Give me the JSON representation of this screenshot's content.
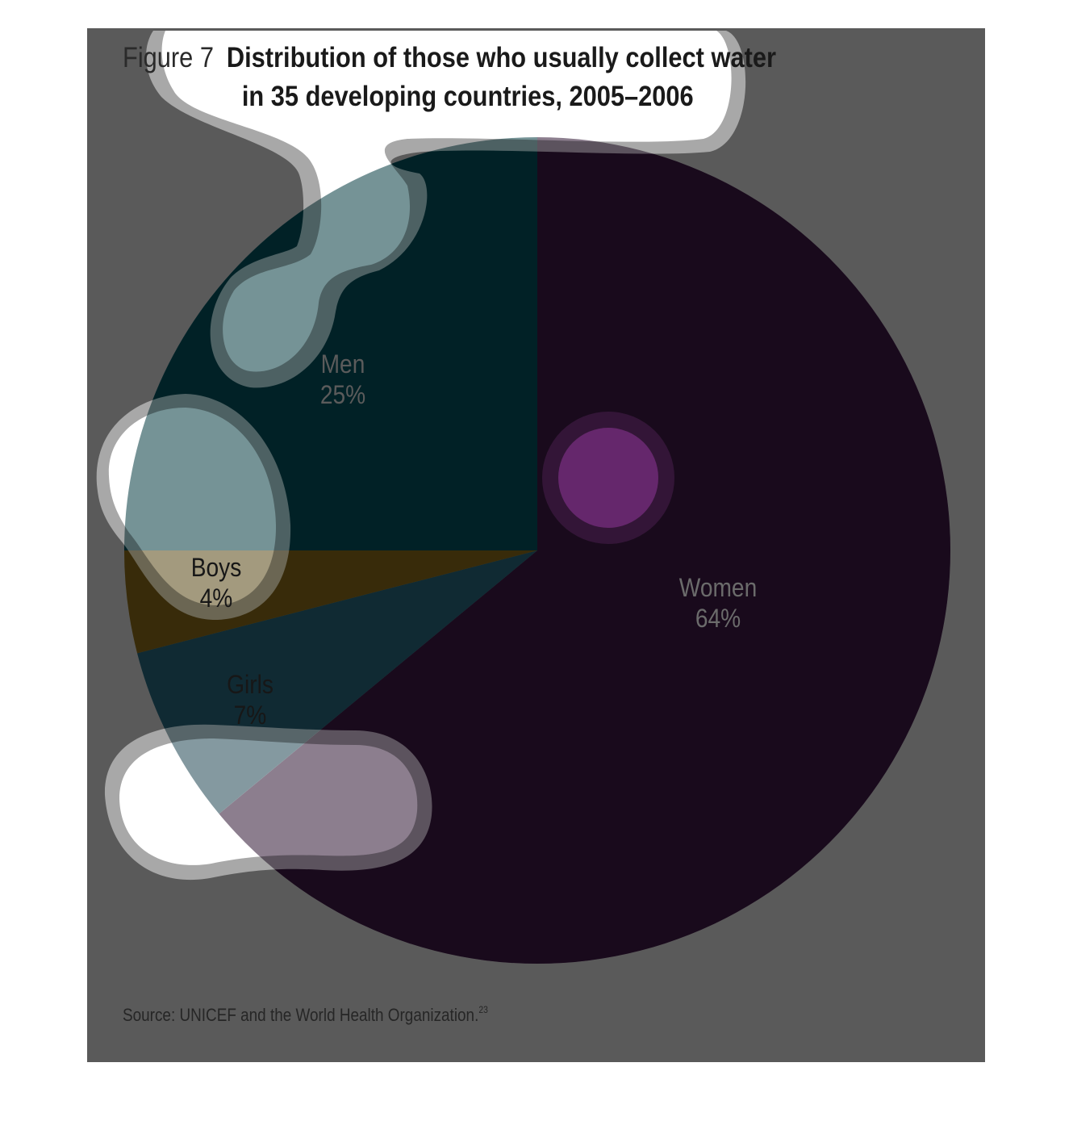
{
  "figure_label": "Figure 7",
  "title_line1": "Distribution of those who usually collect water",
  "title_line2": "in 35 developing countries, 2005–2006",
  "source": "Source: UNICEF and the World Health Organization.",
  "source_ref": "23",
  "chart_data": {
    "type": "pie",
    "labels": [
      "Women",
      "Girls",
      "Boys",
      "Men"
    ],
    "values": [
      64,
      7,
      4,
      25
    ],
    "data_labels": [
      "Women\n64%",
      "Girls\n7%",
      "Boys\n4%",
      "Men\n25%"
    ],
    "colors": [
      "#2d1431",
      "#1f4551",
      "#574714",
      "#023940"
    ],
    "label_colors": [
      "#6b6b6b",
      "#171717",
      "#171717",
      "#5b5b5b"
    ],
    "start_angle_deg": 0,
    "direction": "clockwise"
  }
}
